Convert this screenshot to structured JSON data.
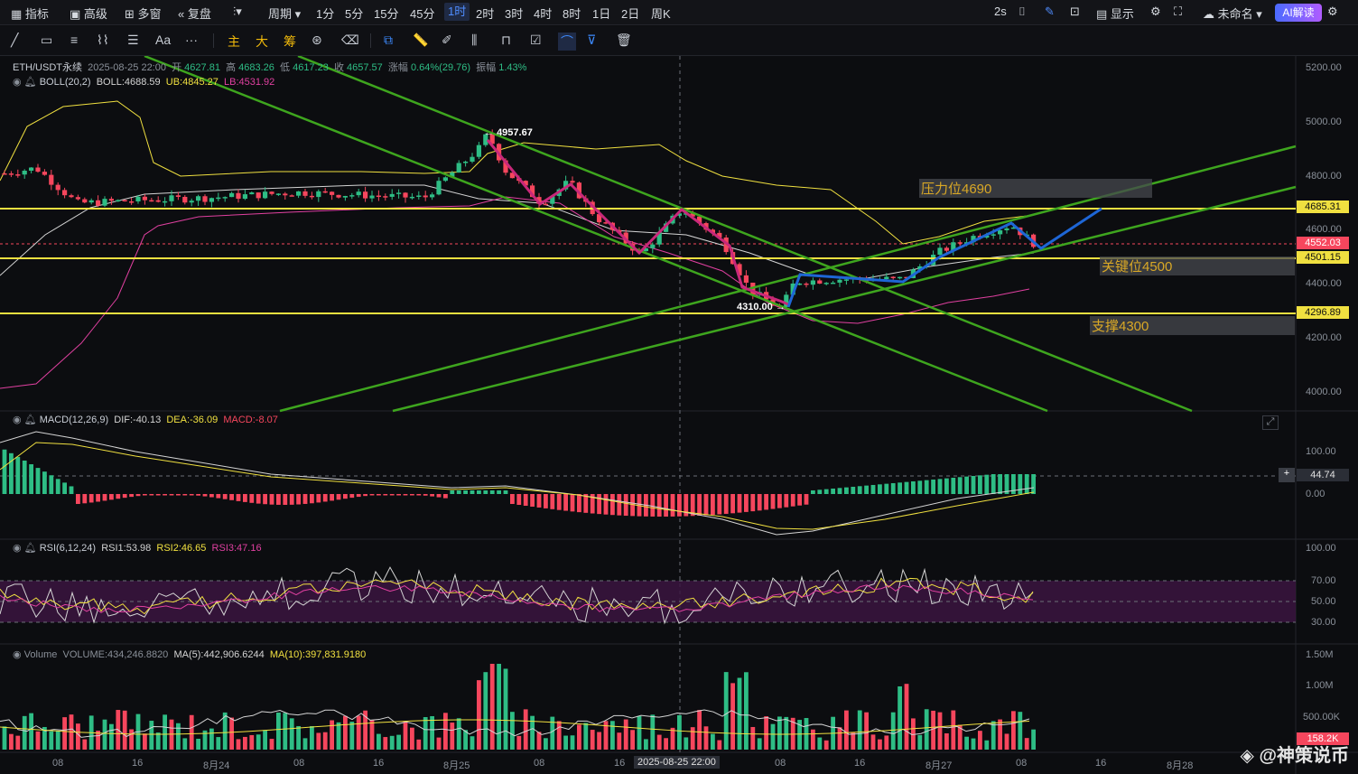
{
  "toolbar": {
    "indicators": "指标",
    "advanced": "高级",
    "multi_window": "多窗",
    "replay": "复盘",
    "period": "周期",
    "intervals": [
      "1分",
      "5分",
      "15分",
      "45分",
      "1时",
      "2时",
      "3时",
      "4时",
      "8时",
      "1日",
      "2日",
      "周K"
    ],
    "active_interval": "1时",
    "refresh": "2s",
    "display": "显示",
    "unnamed": "未命名",
    "ai": "AI解读"
  },
  "drawbar": {
    "font_label": "Aa",
    "more": "···",
    "main": "主",
    "big": "大",
    "chips": "筹"
  },
  "legend": {
    "symbol": "ETH/USDT永续",
    "datetime": "2025-08-25 22:00",
    "open_label": "开",
    "open": "4627.81",
    "high_label": "高",
    "high": "4683.26",
    "low_label": "低",
    "low": "4617.23",
    "close_label": "收",
    "close": "4657.57",
    "change_label": "涨幅",
    "change": "0.64%(29.76)",
    "amp_label": "振幅",
    "amp": "1.43%",
    "boll": "BOLL(20,2)",
    "boll_mid": "BOLL:4688.59",
    "boll_ub": "UB:4845.27",
    "boll_lb": "LB:4531.92",
    "macd": "MACD(12,26,9)",
    "dif": "DIF:-40.13",
    "dea": "DEA:-36.09",
    "macd_val": "MACD:-8.07",
    "rsi": "RSI(6,12,24)",
    "rsi1": "RSI1:53.98",
    "rsi2": "RSI2:46.65",
    "rsi3": "RSI3:47.16",
    "vol": "Volume",
    "vol_val": "VOLUME:434,246.8820",
    "ma5": "MA(5):442,906.6244",
    "ma10": "MA(10):397,831.9180"
  },
  "price_axis": [
    "5200.00",
    "5000.00",
    "4800.00",
    "4600.00",
    "4400.00",
    "4200.00",
    "4000.00"
  ],
  "price_tags": {
    "resistance": "4685.31",
    "last": "4552.03",
    "key": "4501.15",
    "support": "4296.89"
  },
  "annotations": {
    "high": "4957.67",
    "low": "4310.00",
    "resistance": "压力位4690",
    "key": "关键位4500",
    "support": "支撑4300"
  },
  "macd_axis": [
    "100.00",
    "0.00"
  ],
  "macd_tag": "44.74",
  "rsi_axis": [
    "100.00",
    "70.00",
    "50.00",
    "30.00"
  ],
  "vol_axis": [
    "1.50M",
    "1.00M",
    "500.00K"
  ],
  "vol_tag": "158.2K",
  "time_axis": [
    "08",
    "16",
    "8月24",
    "08",
    "16",
    "8月25",
    "08",
    "16",
    "2025-08-25 22:00",
    "08",
    "16",
    "8月27",
    "08",
    "16",
    "8月28"
  ],
  "watermark": "@神策说币",
  "colors": {
    "up": "#2ebd85",
    "down": "#f6465d",
    "boll_mid": "#d4d4d4",
    "boll_ub": "#f0e040",
    "boll_lb": "#e040a0",
    "level": "#f0e040",
    "trend": "#3ea51e",
    "path_down": "#c8287a",
    "path_up": "#1e66d6"
  }
}
